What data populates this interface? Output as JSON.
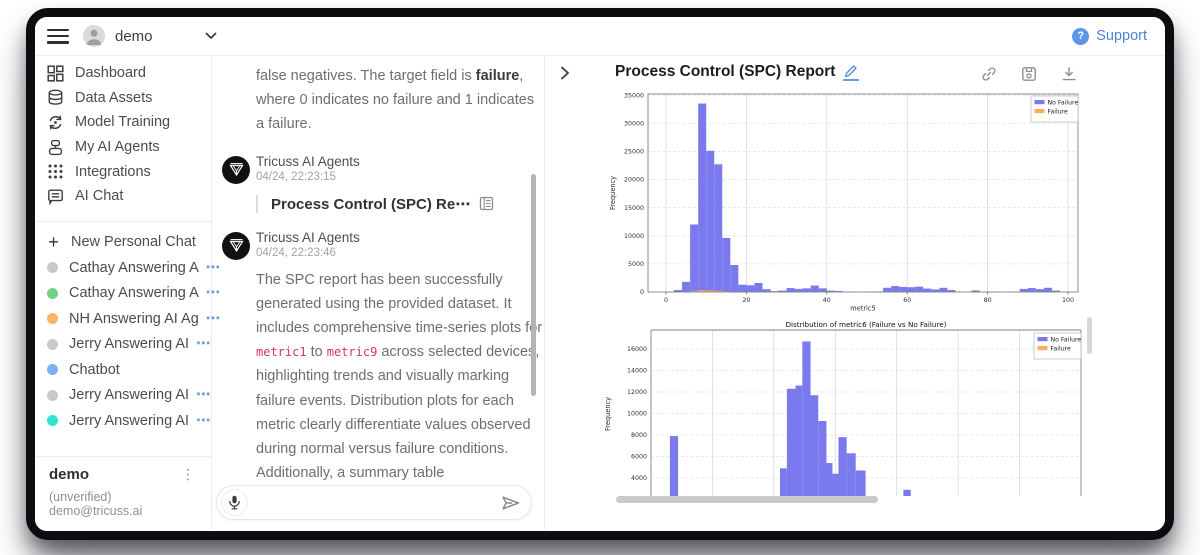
{
  "topbar": {
    "user_name": "demo",
    "support_label": "Support",
    "help_glyph": "?"
  },
  "sidebar": {
    "nav": [
      {
        "id": "dashboard",
        "label": "Dashboard",
        "icon": "dashboard-icon"
      },
      {
        "id": "data-assets",
        "label": "Data Assets",
        "icon": "database-icon"
      },
      {
        "id": "model-training",
        "label": "Model Training",
        "icon": "training-icon"
      },
      {
        "id": "my-ai-agents",
        "label": "My AI Agents",
        "icon": "agents-icon"
      },
      {
        "id": "integrations",
        "label": "Integrations",
        "icon": "integrations-icon"
      },
      {
        "id": "ai-chat",
        "label": "AI Chat",
        "icon": "chat-icon"
      }
    ],
    "new_chat_label": "New Personal Chat",
    "ellipsis": "⋯",
    "chats": [
      {
        "name": "Cathay Answering A",
        "dot_color": "#c9c9c9",
        "truncated": true
      },
      {
        "name": "Cathay Answering A",
        "dot_color": "#6fd487",
        "truncated": true
      },
      {
        "name": "NH Answering AI Ag",
        "dot_color": "#f9b46c",
        "truncated": true
      },
      {
        "name": "Jerry Answering AI",
        "dot_color": "#c9c9c9",
        "truncated": true
      },
      {
        "name": "Chatbot",
        "dot_color": "#79b3f4",
        "truncated": false
      },
      {
        "name": "Jerry Answering AI",
        "dot_color": "#c9c9c9",
        "truncated": true
      },
      {
        "name": "Jerry Answering AI",
        "dot_color": "#35e1d2",
        "truncated": true
      }
    ],
    "footer": {
      "username": "demo",
      "email": "(unverified) demo@tricuss.ai"
    }
  },
  "chat": {
    "intro_segments": [
      {
        "t": "text",
        "v": "false negatives. The target field is "
      },
      {
        "t": "bold",
        "v": "failure"
      },
      {
        "t": "text",
        "v": ", where 0 indicates no failure and 1 indicates a failure."
      }
    ],
    "messages": [
      {
        "sender": "Tricuss AI Agents",
        "time": "04/24, 22:23:15",
        "attachment": "Process Control (SPC) Re⋯"
      },
      {
        "sender": "Tricuss AI Agents",
        "time": "04/24, 22:23:46",
        "segments": [
          {
            "t": "text",
            "v": "The SPC report has been successfully generated using the provided dataset. It includes comprehensive time-series plots for "
          },
          {
            "t": "code",
            "v": "metric1"
          },
          {
            "t": "text",
            "v": " to "
          },
          {
            "t": "code",
            "v": "metric9"
          },
          {
            "t": "text",
            "v": " across selected devices, highlighting trends and visually marking failure events. Distribution plots for each metric clearly differentiate values observed during normal versus failure conditions. Additionally, a summary table"
          }
        ]
      }
    ],
    "input_value": ""
  },
  "report": {
    "title": "Process Control (SPC) Report",
    "header_icons": [
      "link-icon",
      "save-icon",
      "download-icon"
    ],
    "collapse_icon": "chevron-right-icon"
  },
  "chart_data": [
    {
      "type": "bar",
      "subtype": "histogram",
      "title": "",
      "xlabel": "metric5",
      "ylabel": "Frequency",
      "xticks": [
        0,
        20,
        40,
        60,
        80,
        100
      ],
      "yticks": [
        0,
        5000,
        10000,
        15000,
        20000,
        25000,
        30000,
        35000
      ],
      "xlim": [
        -4.5,
        102.5
      ],
      "ylim": [
        0,
        35200
      ],
      "grid": true,
      "legend_position": "top-right",
      "legend": [
        {
          "label": "No Failure",
          "color": "#7b79ee"
        },
        {
          "label": "Failure",
          "color": "#fcae66"
        }
      ],
      "bin_width": 2,
      "series": [
        {
          "name": "No Failure",
          "color": "#7b79ee",
          "bins": [
            [
              2,
              350
            ],
            [
              4,
              1800
            ],
            [
              6,
              12000
            ],
            [
              8,
              33500
            ],
            [
              10,
              25100
            ],
            [
              12,
              22700
            ],
            [
              14,
              9600
            ],
            [
              16,
              4800
            ],
            [
              18,
              1300
            ],
            [
              20,
              1200
            ],
            [
              22,
              1600
            ],
            [
              24,
              500
            ],
            [
              26,
              150
            ],
            [
              28,
              250
            ],
            [
              30,
              700
            ],
            [
              32,
              550
            ],
            [
              34,
              650
            ],
            [
              36,
              1150
            ],
            [
              38,
              650
            ],
            [
              40,
              250
            ],
            [
              42,
              180
            ],
            [
              52,
              100
            ],
            [
              54,
              750
            ],
            [
              56,
              1050
            ],
            [
              58,
              900
            ],
            [
              60,
              850
            ],
            [
              62,
              950
            ],
            [
              64,
              600
            ],
            [
              66,
              450
            ],
            [
              68,
              750
            ],
            [
              70,
              350
            ],
            [
              76,
              280
            ],
            [
              88,
              550
            ],
            [
              90,
              700
            ],
            [
              92,
              500
            ],
            [
              94,
              750
            ],
            [
              96,
              250
            ]
          ]
        },
        {
          "name": "Failure",
          "color": "#fcae66",
          "bins": [
            [
              6,
              200
            ],
            [
              8,
              320
            ],
            [
              10,
              280
            ],
            [
              12,
              220
            ],
            [
              14,
              130
            ]
          ]
        }
      ]
    },
    {
      "type": "bar",
      "subtype": "histogram",
      "title": "Distribution of metric6 (Failure vs No Failure)",
      "xlabel": "",
      "ylabel": "Frequency",
      "yticks": [
        4000,
        6000,
        8000,
        10000,
        12000,
        14000,
        16000
      ],
      "ylim_visible": [
        2300,
        17700
      ],
      "grid": true,
      "legend_position": "top-right",
      "legend": [
        {
          "label": "No Failure",
          "color": "#7b79ee"
        },
        {
          "label": "Failure",
          "color": "#fcae66"
        }
      ],
      "note": "x axis clipped below panel edge",
      "series": [
        {
          "name": "No Failure",
          "color": "#7b79ee",
          "bins_frac": [
            [
              0.044,
              0.019,
              7900
            ],
            [
              0.3,
              0.016,
              4900
            ],
            [
              0.316,
              0.02,
              12300
            ],
            [
              0.336,
              0.016,
              12600
            ],
            [
              0.352,
              0.019,
              16700
            ],
            [
              0.371,
              0.018,
              11700
            ],
            [
              0.389,
              0.019,
              9300
            ],
            [
              0.408,
              0.014,
              5400
            ],
            [
              0.422,
              0.014,
              4400
            ],
            [
              0.436,
              0.019,
              7800
            ],
            [
              0.455,
              0.021,
              6300
            ],
            [
              0.476,
              0.023,
              4700
            ],
            [
              0.587,
              0.017,
              2900
            ]
          ]
        }
      ]
    }
  ]
}
